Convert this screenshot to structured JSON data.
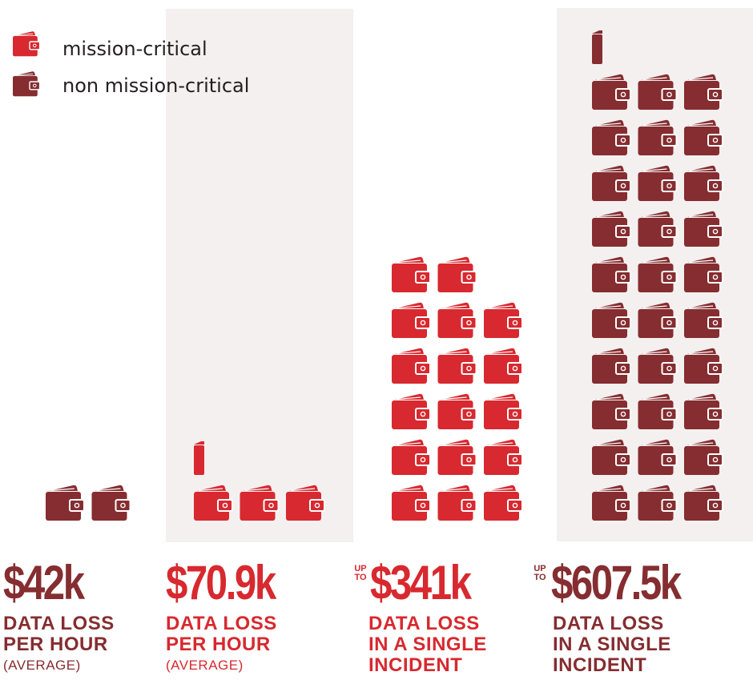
{
  "colors": {
    "mission_critical": "#d7292f",
    "non_mission_critical": "#852d30",
    "panel_bg": "#f4f0f0",
    "text_dark": "#231f20"
  },
  "legend": [
    {
      "label": "mission-critical",
      "icon": "wallet-icon",
      "color": "#d7292f"
    },
    {
      "label": "non mission-critical",
      "icon": "wallet-icon",
      "color": "#852d30"
    }
  ],
  "chart_data": {
    "type": "pictograph",
    "icon": "wallet-icon",
    "series": [
      {
        "name": "non mission-critical",
        "color": "#852d30"
      },
      {
        "name": "mission-critical",
        "color": "#d7292f"
      }
    ],
    "categories": [
      {
        "up_to": "",
        "amount": "$42k",
        "value_k": 42,
        "caption": [
          "DATA LOSS",
          "PER HOUR"
        ],
        "qualifier": "(AVERAGE)",
        "series": "non mission-critical",
        "icons": 2,
        "shaded": false
      },
      {
        "up_to": "",
        "amount": "$70.9k",
        "value_k": 70.9,
        "caption": [
          "DATA LOSS",
          "PER HOUR"
        ],
        "qualifier": "(AVERAGE)",
        "series": "mission-critical",
        "icons": 3.3,
        "shaded": true
      },
      {
        "up_to": "UP TO",
        "amount": "$341k",
        "value_k": 341,
        "caption": [
          "DATA LOSS",
          "IN A SINGLE",
          "INCIDENT"
        ],
        "qualifier": "",
        "series": "mission-critical",
        "icons": 17,
        "shaded": false
      },
      {
        "up_to": "UP TO",
        "amount": "$607.5k",
        "value_k": 607.5,
        "caption": [
          "DATA LOSS",
          "IN A SINGLE",
          "INCIDENT"
        ],
        "qualifier": "",
        "series": "non mission-critical",
        "icons": 30.3,
        "shaded": true
      }
    ]
  }
}
